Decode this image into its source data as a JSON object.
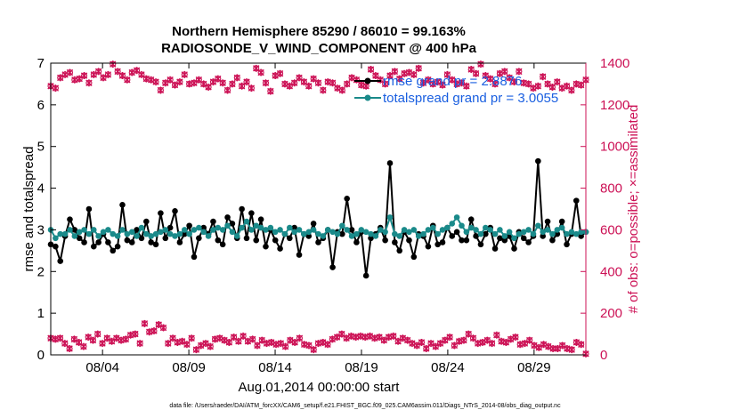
{
  "chart_data": {
    "type": "line",
    "title_line1": "Northern Hemisphere 85290 / 86010 = 99.163%",
    "title_line2": "RADIOSONDE_V_WIND_COMPONENT @ 400 hPa",
    "xlabel": "Aug.01,2014 00:00:00 start",
    "ylabel": "rmse and totalspread",
    "ylabel_right": "# of obs: o=possible; ×=assimilated",
    "xlim": [
      1,
      32
    ],
    "ylim": [
      0,
      7
    ],
    "ylim_right": [
      0,
      1400
    ],
    "x_ticks": [
      {
        "x": 4,
        "label": "08/04"
      },
      {
        "x": 9,
        "label": "08/09"
      },
      {
        "x": 14,
        "label": "08/14"
      },
      {
        "x": 19,
        "label": "08/19"
      },
      {
        "x": 24,
        "label": "08/24"
      },
      {
        "x": 29,
        "label": "08/29"
      }
    ],
    "y_ticks": [
      "0",
      "1",
      "2",
      "3",
      "4",
      "5",
      "6",
      "7"
    ],
    "y_ticks_right": [
      "0",
      "200",
      "400",
      "600",
      "800",
      "1000",
      "1200",
      "1400"
    ],
    "colors": {
      "rmse": "#000000",
      "spread": "#1a8a8a",
      "obs": "#cc1155",
      "legend_text": "#1a5fe0"
    },
    "series": [
      {
        "name": "rmse grand pr = 2.8876",
        "axis": "left",
        "values": [
          2.65,
          2.6,
          2.25,
          2.85,
          3.25,
          3.0,
          2.8,
          2.7,
          3.5,
          2.6,
          2.7,
          2.9,
          2.7,
          2.5,
          2.6,
          3.6,
          2.75,
          2.7,
          3.0,
          2.8,
          3.2,
          2.7,
          2.65,
          3.4,
          2.8,
          3.05,
          3.45,
          2.7,
          2.9,
          3.1,
          2.35,
          2.8,
          3.05,
          2.9,
          3.2,
          2.75,
          2.65,
          3.3,
          3.15,
          2.8,
          3.5,
          2.8,
          3.4,
          2.75,
          3.25,
          2.6,
          3.0,
          2.75,
          2.55,
          2.9,
          2.8,
          3.05,
          2.4,
          2.9,
          2.85,
          3.15,
          2.7,
          2.8,
          3.0,
          2.1,
          2.95,
          2.9,
          3.75,
          3.0,
          2.7,
          2.95,
          1.9,
          2.8,
          2.9,
          3.05,
          2.75,
          4.6,
          2.7,
          2.5,
          2.95,
          2.75,
          2.35,
          2.9,
          2.85,
          2.6,
          3.1,
          2.65,
          2.7,
          3.05,
          2.85,
          2.95,
          2.75,
          2.75,
          3.25,
          2.85,
          2.65,
          2.9,
          3.05,
          2.55,
          2.8,
          2.75,
          2.85,
          2.55,
          2.95,
          2.8,
          2.7,
          2.85,
          4.65,
          2.85,
          3.2,
          2.75,
          2.9,
          3.2,
          2.65,
          2.9,
          3.7,
          2.85,
          2.95
        ]
      },
      {
        "name": "totalspread grand pr = 3.0055",
        "axis": "left",
        "values": [
          3.0,
          2.8,
          2.9,
          2.9,
          3.0,
          2.85,
          2.95,
          3.0,
          2.9,
          3.0,
          2.85,
          2.95,
          3.0,
          2.9,
          2.85,
          3.0,
          2.9,
          2.95,
          2.85,
          3.05,
          2.9,
          2.85,
          2.9,
          2.95,
          3.0,
          2.9,
          2.85,
          2.9,
          3.0,
          2.9,
          3.0,
          3.05,
          2.95,
          2.85,
          3.0,
          3.05,
          3.0,
          3.1,
          2.95,
          2.85,
          3.05,
          3.2,
          3.0,
          3.1,
          3.05,
          3.0,
          3.05,
          2.95,
          3.0,
          2.9,
          3.05,
          2.95,
          3.0,
          2.9,
          2.95,
          3.0,
          2.9,
          2.85,
          3.0,
          2.95,
          2.9,
          3.1,
          3.0,
          2.85,
          2.9,
          3.0,
          2.95,
          2.9,
          2.85,
          3.0,
          2.95,
          3.3,
          2.9,
          2.85,
          3.0,
          2.95,
          3.0,
          2.85,
          2.9,
          3.0,
          3.05,
          2.9,
          3.0,
          3.05,
          3.15,
          3.3,
          3.1,
          2.95,
          3.05,
          3.0,
          2.9,
          3.05,
          3.0,
          2.9,
          3.0,
          2.85,
          2.95,
          2.8,
          2.9,
          2.95,
          3.0,
          2.9,
          3.1,
          2.95,
          3.0,
          2.9,
          3.0,
          3.05,
          2.9,
          2.95,
          2.9,
          2.95,
          2.95
        ]
      },
      {
        "name": "possible",
        "axis": "right",
        "values": [
          1290,
          1280,
          1330,
          1345,
          1355,
          1320,
          1325,
          1340,
          1305,
          1345,
          1360,
          1330,
          1345,
          1395,
          1360,
          1340,
          1320,
          1355,
          1365,
          1345,
          1325,
          1320,
          1310,
          1270,
          1305,
          1320,
          1295,
          1310,
          1345,
          1300,
          1305,
          1320,
          1300,
          1285,
          1310,
          1325,
          1305,
          1270,
          1300,
          1330,
          1290,
          1310,
          1280,
          1375,
          1355,
          1305,
          1265,
          1340,
          1350,
          1300,
          1290,
          1305,
          1330,
          1310,
          1290,
          1325,
          1305,
          1270,
          1310,
          1305,
          1280,
          1270,
          1300,
          1330,
          1320,
          1295,
          1290,
          1370,
          1340,
          1320,
          1300,
          1340,
          1360,
          1325,
          1350,
          1355,
          1345,
          1375,
          1305,
          1320,
          1300,
          1310,
          1295,
          1345,
          1320,
          1300,
          1305,
          1290,
          1370,
          1350,
          1395,
          1340,
          1325,
          1300,
          1350,
          1360,
          1330,
          1310,
          1360,
          1305,
          1300,
          1280,
          1290,
          1335,
          1300,
          1285,
          1310,
          1280,
          1290,
          1270,
          1300,
          1295,
          1320
        ]
      },
      {
        "name": "assimilated",
        "axis": "right",
        "values": [
          1290,
          1280,
          1330,
          1345,
          1355,
          1320,
          1325,
          1340,
          1305,
          1345,
          1360,
          1330,
          1345,
          1395,
          1360,
          1340,
          1320,
          1355,
          1365,
          1345,
          1325,
          1320,
          1310,
          1270,
          1305,
          1320,
          1295,
          1310,
          1345,
          1300,
          1305,
          1320,
          1300,
          1285,
          1310,
          1325,
          1305,
          1270,
          1300,
          1330,
          1290,
          1310,
          1280,
          1375,
          1355,
          1305,
          1265,
          1340,
          1350,
          1300,
          1290,
          1305,
          1330,
          1310,
          1290,
          1325,
          1305,
          1270,
          1310,
          1305,
          1280,
          1270,
          1300,
          1330,
          1320,
          1295,
          1290,
          1370,
          1340,
          1320,
          1300,
          1340,
          1360,
          1325,
          1350,
          1355,
          1345,
          1375,
          1305,
          1320,
          1300,
          1310,
          1295,
          1345,
          1320,
          1300,
          1305,
          1290,
          1370,
          1350,
          1395,
          1340,
          1325,
          1300,
          1350,
          1360,
          1330,
          1310,
          1360,
          1305,
          1300,
          1280,
          1290,
          1335,
          1300,
          1285,
          1310,
          1280,
          1290,
          1270,
          1300,
          1295,
          1320
        ]
      },
      {
        "name": "possible_low",
        "axis": "right",
        "values": [
          80,
          75,
          80,
          55,
          30,
          75,
          60,
          40,
          85,
          70,
          100,
          55,
          80,
          65,
          80,
          70,
          75,
          95,
          100,
          55,
          150,
          110,
          115,
          145,
          130,
          55,
          80,
          60,
          65,
          50,
          80,
          25,
          45,
          55,
          40,
          75,
          80,
          70,
          60,
          85,
          65,
          90,
          65,
          75,
          45,
          70,
          55,
          60,
          50,
          55,
          40,
          70,
          60,
          80,
          50,
          45,
          25,
          55,
          60,
          50,
          75,
          85,
          100,
          80,
          90,
          85,
          90,
          85,
          90,
          80,
          85,
          70,
          85,
          90,
          65,
          80,
          70,
          55,
          45,
          60,
          30,
          55,
          40,
          55,
          70,
          85,
          45,
          65,
          70,
          100,
          80,
          55,
          60,
          70,
          55,
          95,
          65,
          60,
          75,
          85,
          50,
          55,
          70,
          45,
          35,
          50,
          40,
          30,
          30,
          45,
          30,
          25,
          60,
          50,
          5
        ]
      },
      {
        "name": "assimilated_low",
        "axis": "right",
        "values": [
          80,
          75,
          80,
          55,
          30,
          75,
          60,
          40,
          85,
          70,
          100,
          55,
          80,
          65,
          80,
          70,
          75,
          95,
          100,
          55,
          150,
          110,
          115,
          145,
          130,
          55,
          80,
          60,
          65,
          50,
          80,
          25,
          45,
          55,
          40,
          75,
          80,
          70,
          60,
          85,
          65,
          90,
          65,
          75,
          45,
          70,
          55,
          60,
          50,
          55,
          40,
          70,
          60,
          80,
          50,
          45,
          25,
          55,
          60,
          50,
          75,
          85,
          100,
          80,
          90,
          85,
          90,
          85,
          90,
          80,
          85,
          70,
          85,
          90,
          65,
          80,
          70,
          55,
          45,
          60,
          30,
          55,
          40,
          55,
          70,
          85,
          45,
          65,
          70,
          100,
          80,
          55,
          60,
          70,
          55,
          95,
          65,
          60,
          75,
          85,
          50,
          55,
          70,
          45,
          35,
          50,
          40,
          30,
          30,
          45,
          30,
          25,
          60,
          50,
          5
        ]
      }
    ],
    "legend": [
      "rmse grand pr = 2.8876",
      "totalspread grand pr = 3.0055"
    ],
    "footnote": "data file: /Users/raeder/DAI/ATM_forcXX/CAM6_setup/f.e21.FHIST_BGC.f09_025.CAM6assim.011/Diags_NTrS_2014-08/obs_diag_output.nc"
  }
}
